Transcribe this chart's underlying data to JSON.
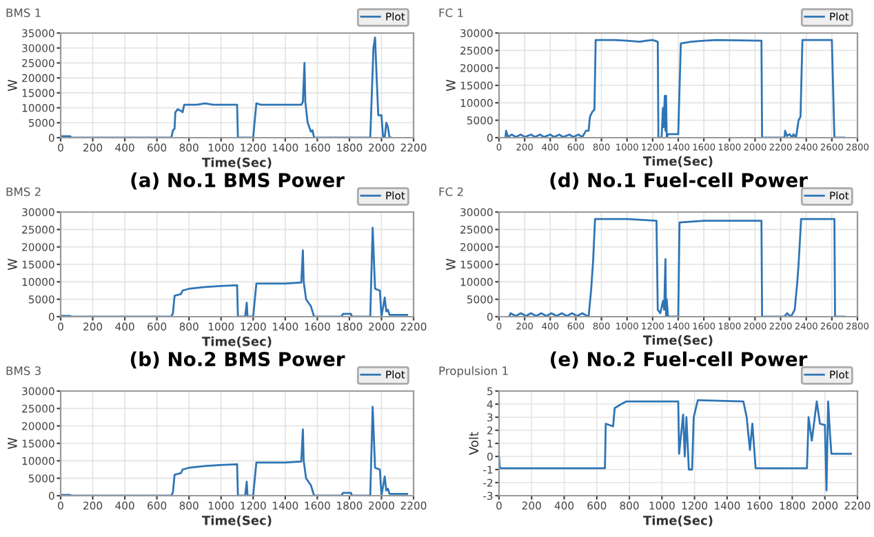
{
  "chart_data": [
    {
      "type": "line",
      "title": "BMS 1",
      "subtitle": "(a) No.1 BMS Power",
      "xlabel": "Time(Sec)",
      "ylabel": "W",
      "xlim": [
        0,
        2200
      ],
      "xticks": [
        0,
        200,
        400,
        600,
        800,
        1000,
        1200,
        1400,
        1600,
        1800,
        2000,
        2200
      ],
      "ylim": [
        0,
        35000
      ],
      "yticks": [
        0,
        5000,
        10000,
        15000,
        20000,
        25000,
        30000,
        35000
      ],
      "grid": true,
      "legend": "top right",
      "x": [
        0,
        60,
        65,
        690,
        700,
        710,
        715,
        730,
        750,
        760,
        770,
        800,
        850,
        900,
        950,
        1000,
        1050,
        1100,
        1105,
        1200,
        1220,
        1250,
        1300,
        1400,
        1500,
        1510,
        1520,
        1525,
        1540,
        1560,
        1570,
        1580,
        1930,
        1950,
        1960,
        1970,
        1980,
        2000,
        2010,
        2020,
        2030,
        2040,
        2050,
        2060
      ],
      "series": [
        {
          "name": "Plot",
          "color": "#2e75b6",
          "values": [
            500,
            500,
            0,
            0,
            2500,
            3000,
            8500,
            9500,
            9000,
            8500,
            11000,
            11000,
            11000,
            11500,
            11000,
            11000,
            11000,
            11000,
            0,
            0,
            11500,
            11000,
            11000,
            11000,
            11000,
            12000,
            25000,
            12000,
            5000,
            2000,
            2500,
            0,
            0,
            30000,
            33500,
            20000,
            7500,
            7500,
            0,
            0,
            5000,
            3500,
            0,
            0
          ]
        }
      ]
    },
    {
      "type": "line",
      "title": "FC 1",
      "subtitle": "(d) No.1 Fuel-cell Power",
      "xlabel": "Time(Sec)",
      "ylabel": "W",
      "xlim": [
        0,
        2800
      ],
      "xticks": [
        0,
        200,
        400,
        600,
        800,
        1000,
        1200,
        1400,
        1600,
        1800,
        2000,
        2200,
        2400,
        2600,
        2800
      ],
      "ylim": [
        0,
        30000
      ],
      "yticks": [
        0,
        5000,
        10000,
        15000,
        20000,
        25000,
        30000
      ],
      "grid": true,
      "legend": "top right",
      "x": [
        50,
        55,
        70,
        100,
        130,
        170,
        200,
        250,
        280,
        320,
        350,
        400,
        430,
        470,
        500,
        550,
        580,
        620,
        650,
        680,
        700,
        710,
        730,
        745,
        755,
        800,
        900,
        1000,
        1100,
        1150,
        1200,
        1240,
        1245,
        1270,
        1280,
        1285,
        1295,
        1300,
        1305,
        1310,
        1320,
        1400,
        1420,
        1500,
        1600,
        1700,
        2050,
        2055,
        2230,
        2235,
        2250,
        2270,
        2290,
        2300,
        2320,
        2340,
        2355,
        2370,
        2600,
        2620,
        2700
      ],
      "series": [
        {
          "name": "Plot",
          "color": "#2e75b6",
          "values": [
            0,
            2000,
            200,
            900,
            200,
            900,
            200,
            900,
            200,
            900,
            200,
            900,
            200,
            900,
            200,
            900,
            200,
            900,
            200,
            2000,
            2000,
            6000,
            7500,
            8000,
            28000,
            28000,
            28000,
            27800,
            27500,
            27800,
            28000,
            27500,
            0,
            0,
            8500,
            3000,
            12000,
            2000,
            12000,
            0,
            1000,
            1000,
            27000,
            27500,
            27800,
            28000,
            27800,
            0,
            0,
            2000,
            500,
            1000,
            0,
            1000,
            0,
            5000,
            6000,
            28000,
            28000,
            0,
            0
          ]
        }
      ]
    },
    {
      "type": "line",
      "title": "BMS 2",
      "subtitle": "(b) No.2 BMS Power",
      "xlabel": "Time(Sec)",
      "ylabel": "W",
      "xlim": [
        0,
        2200
      ],
      "xticks": [
        0,
        200,
        400,
        600,
        800,
        1000,
        1200,
        1400,
        1600,
        1800,
        2000,
        2200
      ],
      "ylim": [
        0,
        30000
      ],
      "yticks": [
        0,
        5000,
        10000,
        15000,
        20000,
        25000,
        30000
      ],
      "grid": true,
      "legend": "top right",
      "x": [
        0,
        60,
        65,
        690,
        700,
        710,
        750,
        760,
        800,
        900,
        1000,
        1100,
        1105,
        1150,
        1160,
        1165,
        1200,
        1220,
        1300,
        1400,
        1500,
        1510,
        1515,
        1530,
        1560,
        1580,
        1750,
        1760,
        1810,
        1815,
        1930,
        1945,
        1960,
        1990,
        2000,
        2020,
        2030,
        2040,
        2050,
        2160
      ],
      "series": [
        {
          "name": "Plot",
          "color": "#2e75b6",
          "values": [
            200,
            200,
            0,
            0,
            1000,
            6000,
            6500,
            7500,
            8000,
            8500,
            8800,
            9000,
            0,
            0,
            4000,
            0,
            0,
            9500,
            9500,
            9500,
            9800,
            19000,
            10000,
            5000,
            3000,
            0,
            0,
            800,
            800,
            0,
            0,
            25500,
            8000,
            7500,
            0,
            5500,
            1500,
            2000,
            500,
            500
          ]
        }
      ]
    },
    {
      "type": "line",
      "title": "FC 2",
      "subtitle": "(e) No.2 Fuel-cell Power",
      "xlabel": "Time(Sec)",
      "ylabel": "W",
      "xlim": [
        0,
        2800
      ],
      "xticks": [
        0,
        200,
        400,
        600,
        800,
        1000,
        1200,
        1400,
        1600,
        1800,
        2000,
        2200,
        2400,
        2600,
        2800
      ],
      "ylim": [
        0,
        30000
      ],
      "yticks": [
        0,
        5000,
        10000,
        15000,
        20000,
        25000,
        30000
      ],
      "grid": true,
      "legend": "top right",
      "x": [
        80,
        90,
        130,
        170,
        210,
        250,
        290,
        330,
        370,
        410,
        450,
        490,
        530,
        570,
        610,
        650,
        690,
        700,
        720,
        735,
        750,
        1000,
        1230,
        1240,
        1260,
        1280,
        1290,
        1300,
        1305,
        1310,
        1320,
        1400,
        1410,
        1600,
        2050,
        2055,
        2230,
        2250,
        2280,
        2310,
        2330,
        2340,
        2360,
        2620,
        2625,
        2700
      ],
      "series": [
        {
          "name": "Plot",
          "color": "#2e75b6",
          "values": [
            0,
            1000,
            200,
            1000,
            200,
            1000,
            200,
            1000,
            200,
            1000,
            200,
            1000,
            200,
            1000,
            200,
            1000,
            200,
            0,
            8000,
            16000,
            28000,
            28000,
            27500,
            2000,
            1000,
            4500,
            2000,
            16500,
            0,
            5000,
            0,
            0,
            27000,
            27500,
            27500,
            0,
            0,
            1000,
            0,
            2000,
            10000,
            15000,
            28000,
            28000,
            0,
            0
          ]
        }
      ]
    },
    {
      "type": "line",
      "title": "BMS 3",
      "xlabel": "Time(Sec)",
      "ylabel": "W",
      "xlim": [
        0,
        2200
      ],
      "xticks": [
        0,
        200,
        400,
        600,
        800,
        1000,
        1200,
        1400,
        1600,
        1800,
        2000,
        2200
      ],
      "ylim": [
        0,
        30000
      ],
      "yticks": [
        0,
        5000,
        10000,
        15000,
        20000,
        25000,
        30000
      ],
      "grid": true,
      "legend": "top right",
      "x": [
        0,
        60,
        65,
        690,
        700,
        710,
        750,
        760,
        800,
        900,
        1000,
        1100,
        1105,
        1150,
        1160,
        1165,
        1200,
        1220,
        1300,
        1400,
        1500,
        1510,
        1515,
        1530,
        1560,
        1580,
        1750,
        1760,
        1810,
        1815,
        1930,
        1945,
        1960,
        1990,
        2000,
        2020,
        2030,
        2040,
        2050,
        2160
      ],
      "series": [
        {
          "name": "Plot",
          "color": "#2e75b6",
          "values": [
            200,
            200,
            0,
            0,
            1000,
            6000,
            6500,
            7500,
            8000,
            8500,
            8800,
            9000,
            0,
            0,
            4000,
            0,
            0,
            9500,
            9500,
            9500,
            9800,
            19000,
            10000,
            5000,
            3000,
            0,
            0,
            800,
            800,
            0,
            0,
            25500,
            8000,
            7500,
            0,
            5500,
            1500,
            2000,
            500,
            500
          ]
        }
      ]
    },
    {
      "type": "line",
      "title": "Propulsion 1",
      "xlabel": "Time(Sec)",
      "ylabel": "Volt",
      "xlim": [
        0,
        2200
      ],
      "xticks": [
        0,
        200,
        400,
        600,
        800,
        1000,
        1200,
        1400,
        1600,
        1800,
        2000,
        2200
      ],
      "ylim": [
        -3,
        5
      ],
      "yticks": [
        -3,
        -2,
        -1,
        0,
        1,
        2,
        3,
        4,
        5
      ],
      "grid": true,
      "legend": "top right",
      "x": [
        0,
        5,
        650,
        655,
        700,
        710,
        750,
        780,
        1100,
        1105,
        1120,
        1130,
        1140,
        1150,
        1165,
        1185,
        1195,
        1220,
        1500,
        1520,
        1540,
        1555,
        1575,
        1890,
        1900,
        1920,
        1950,
        1970,
        2000,
        2010,
        2020,
        2030,
        2040,
        2160
      ],
      "series": [
        {
          "name": "Plot",
          "color": "#2e75b6",
          "values": [
            0,
            -0.9,
            -0.9,
            2.5,
            2.3,
            3.7,
            4,
            4.2,
            4.2,
            0.2,
            2,
            3.2,
            0,
            3,
            -1,
            -1,
            3,
            4.3,
            4.2,
            3,
            0.5,
            2.5,
            -0.9,
            -0.9,
            3,
            1.2,
            4.2,
            2.5,
            2.4,
            -2.6,
            4.2,
            2,
            0.2,
            0.2
          ]
        }
      ]
    }
  ]
}
